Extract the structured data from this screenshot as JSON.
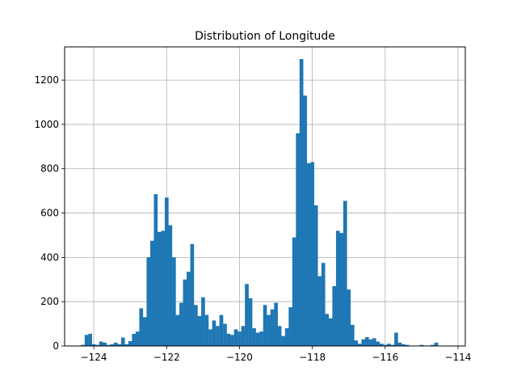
{
  "chart_data": {
    "type": "bar",
    "title": "Distribution of Longitude",
    "xlabel": "",
    "ylabel": "",
    "bin_start": -124.35,
    "bin_width": 0.1,
    "values": [
      5,
      50,
      55,
      8,
      5,
      20,
      15,
      5,
      8,
      15,
      8,
      38,
      8,
      22,
      55,
      65,
      170,
      130,
      400,
      475,
      685,
      515,
      520,
      670,
      545,
      400,
      140,
      195,
      300,
      335,
      460,
      185,
      135,
      220,
      140,
      75,
      115,
      90,
      140,
      100,
      55,
      50,
      75,
      65,
      90,
      280,
      215,
      80,
      60,
      65,
      185,
      140,
      165,
      195,
      90,
      45,
      80,
      175,
      490,
      960,
      1295,
      1130,
      825,
      830,
      635,
      315,
      375,
      145,
      125,
      270,
      520,
      510,
      655,
      255,
      95,
      25,
      10,
      30,
      40,
      30,
      35,
      20,
      10,
      5,
      10,
      5,
      60,
      15,
      8,
      5,
      0,
      0,
      0,
      5,
      0,
      0,
      5,
      15,
      0,
      0
    ],
    "xlim": [
      -124.8,
      -113.8
    ],
    "ylim": [
      0,
      1350
    ],
    "xticks": [
      -124,
      -122,
      -120,
      -118,
      -116,
      -114
    ],
    "xtick_labels": [
      "−124",
      "−122",
      "−120",
      "−118",
      "−116",
      "−114"
    ],
    "yticks": [
      0,
      200,
      400,
      600,
      800,
      1000,
      1200
    ],
    "ytick_labels": [
      "0",
      "200",
      "400",
      "600",
      "800",
      "1000",
      "1200"
    ],
    "grid": true,
    "legend": "none",
    "colors": {
      "bar": "#1f77b4",
      "grid": "#b0b0b0",
      "axes": "#000000"
    }
  }
}
